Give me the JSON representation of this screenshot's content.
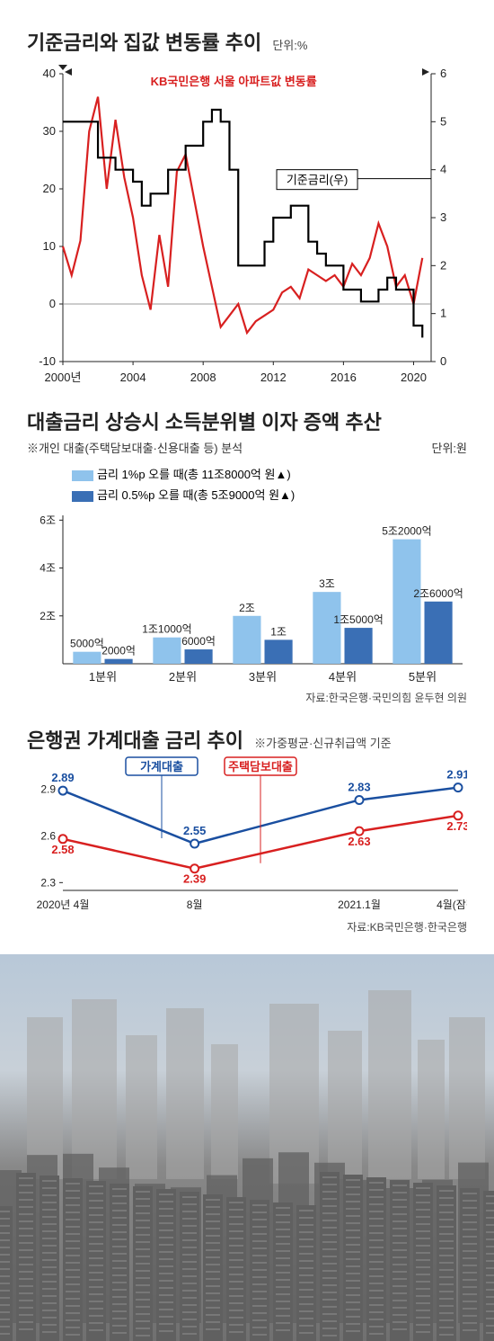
{
  "chart1": {
    "title": "기준금리와 집값 변동률 추이",
    "unit": "단위:%",
    "label_apartment": "KB국민은행 서울 아파트값 변동률",
    "label_rate": "기준금리(우)",
    "x_labels": [
      "2000년",
      "2004",
      "2008",
      "2012",
      "2016",
      "2020"
    ],
    "x_positions": [
      0,
      4,
      8,
      12,
      16,
      20
    ],
    "x_range": [
      0,
      21
    ],
    "left_axis": {
      "ticks": [
        -10,
        0,
        10,
        20,
        30,
        40
      ],
      "range": [
        -10,
        40
      ],
      "arrow": "left"
    },
    "right_axis": {
      "ticks": [
        0,
        1,
        2,
        3,
        4,
        5,
        6
      ],
      "range": [
        0,
        6
      ],
      "arrow": "right"
    },
    "series_apt": {
      "color": "#d82020",
      "width": 2.2,
      "x": [
        0,
        0.5,
        1,
        1.5,
        2,
        2.5,
        3,
        3.5,
        4,
        4.5,
        5,
        5.5,
        6,
        6.5,
        7,
        7.5,
        8,
        8.5,
        9,
        9.5,
        10,
        10.5,
        11,
        11.5,
        12,
        12.5,
        13,
        13.5,
        14,
        14.5,
        15,
        15.5,
        16,
        16.5,
        17,
        17.5,
        18,
        18.5,
        19,
        19.5,
        20,
        20.5
      ],
      "y": [
        10,
        5,
        11,
        30,
        36,
        20,
        32,
        22,
        15,
        5,
        -1,
        12,
        3,
        23,
        26,
        18,
        10,
        3,
        -4,
        -2,
        0,
        -5,
        -3,
        -2,
        -1,
        2,
        3,
        1,
        6,
        5,
        4,
        5,
        3,
        7,
        5,
        8,
        14,
        10,
        3,
        5,
        0,
        8
      ]
    },
    "series_rate": {
      "color": "#000000",
      "width": 2.2,
      "x": [
        0,
        1,
        2,
        2.5,
        3,
        4,
        4.5,
        5,
        6,
        7,
        8,
        8.5,
        9,
        9.5,
        10,
        11,
        11.5,
        12,
        13,
        14,
        14.5,
        15,
        16,
        17,
        18,
        18.5,
        19,
        20,
        20.5
      ],
      "y": [
        5.0,
        5.0,
        4.25,
        4.25,
        4.0,
        3.75,
        3.25,
        3.5,
        4.0,
        4.5,
        5.0,
        5.25,
        5.0,
        4.0,
        2.0,
        2.0,
        2.5,
        3.0,
        3.25,
        2.5,
        2.25,
        2.0,
        1.5,
        1.25,
        1.5,
        1.75,
        1.5,
        0.75,
        0.5
      ]
    },
    "plot_bg": "#ffffff",
    "grid_color": "#999999"
  },
  "chart2": {
    "title": "대출금리 상승시 소득분위별 이자 증액 추산",
    "subtitle": "※개인 대출(주택담보대출·신용대출 등) 분석",
    "unit": "단위:원",
    "legend1": "금리 1%p 오를 때(총 11조8000억 원▲)",
    "legend2": "금리 0.5%p 오를 때(총 5조9000억 원▲)",
    "color1": "#8fc3ec",
    "color2": "#3a6fb5",
    "y_ticks": [
      "2조",
      "4조",
      "6조"
    ],
    "y_tick_vals": [
      2,
      4,
      6
    ],
    "y_range": [
      0,
      6.2
    ],
    "categories": [
      "1분위",
      "2분위",
      "3분위",
      "4분위",
      "5분위"
    ],
    "series1_vals": [
      0.5,
      1.1,
      2.0,
      3.0,
      5.2
    ],
    "series2_vals": [
      0.2,
      0.6,
      1.0,
      1.5,
      2.6
    ],
    "series1_labels": [
      "5000억",
      "1조1000억",
      "2조",
      "3조",
      "5조2000억"
    ],
    "series2_labels": [
      "2000억",
      "6000억",
      "1조",
      "1조5000억",
      "2조6000억"
    ],
    "source": "자료:한국은행·국민의힘 윤두현 의원",
    "bar_width": 0.35
  },
  "chart3": {
    "title": "은행권 가계대출 금리 추이",
    "subtitle": "※가중평균·신규취급액 기준",
    "x_labels": [
      "2020년 4월",
      "8월",
      "2021.1월",
      "4월(잠정)"
    ],
    "x_positions": [
      0,
      4,
      9,
      12
    ],
    "x_range": [
      0,
      12
    ],
    "y_ticks": [
      2.3,
      2.6,
      2.9
    ],
    "y_range": [
      2.25,
      3.0
    ],
    "series_household": {
      "label": "가계대출",
      "color": "#1a4fa0",
      "marker_fill": "#ffffff",
      "marker_stroke": "#1a4fa0",
      "x": [
        0,
        4,
        9,
        12
      ],
      "y": [
        2.89,
        2.55,
        2.83,
        2.91
      ],
      "labels": [
        "2.89",
        "2.55",
        "2.83",
        "2.91"
      ]
    },
    "series_mortgage": {
      "label": "주택담보대출",
      "color": "#d82020",
      "marker_fill": "#ffffff",
      "marker_stroke": "#d82020",
      "x": [
        0,
        4,
        9,
        12
      ],
      "y": [
        2.58,
        2.39,
        2.63,
        2.73
      ],
      "labels": [
        "2.58",
        "2.39",
        "2.63",
        "2.73"
      ]
    },
    "source": "자료:KB국민은행·한국은행",
    "line_width": 2.5
  },
  "bg": {
    "sky_top": "#b8c8d8",
    "sky_mid": "#c8d0d8",
    "bldg_light": "#a8a8a8",
    "bldg_dark": "#606060"
  }
}
